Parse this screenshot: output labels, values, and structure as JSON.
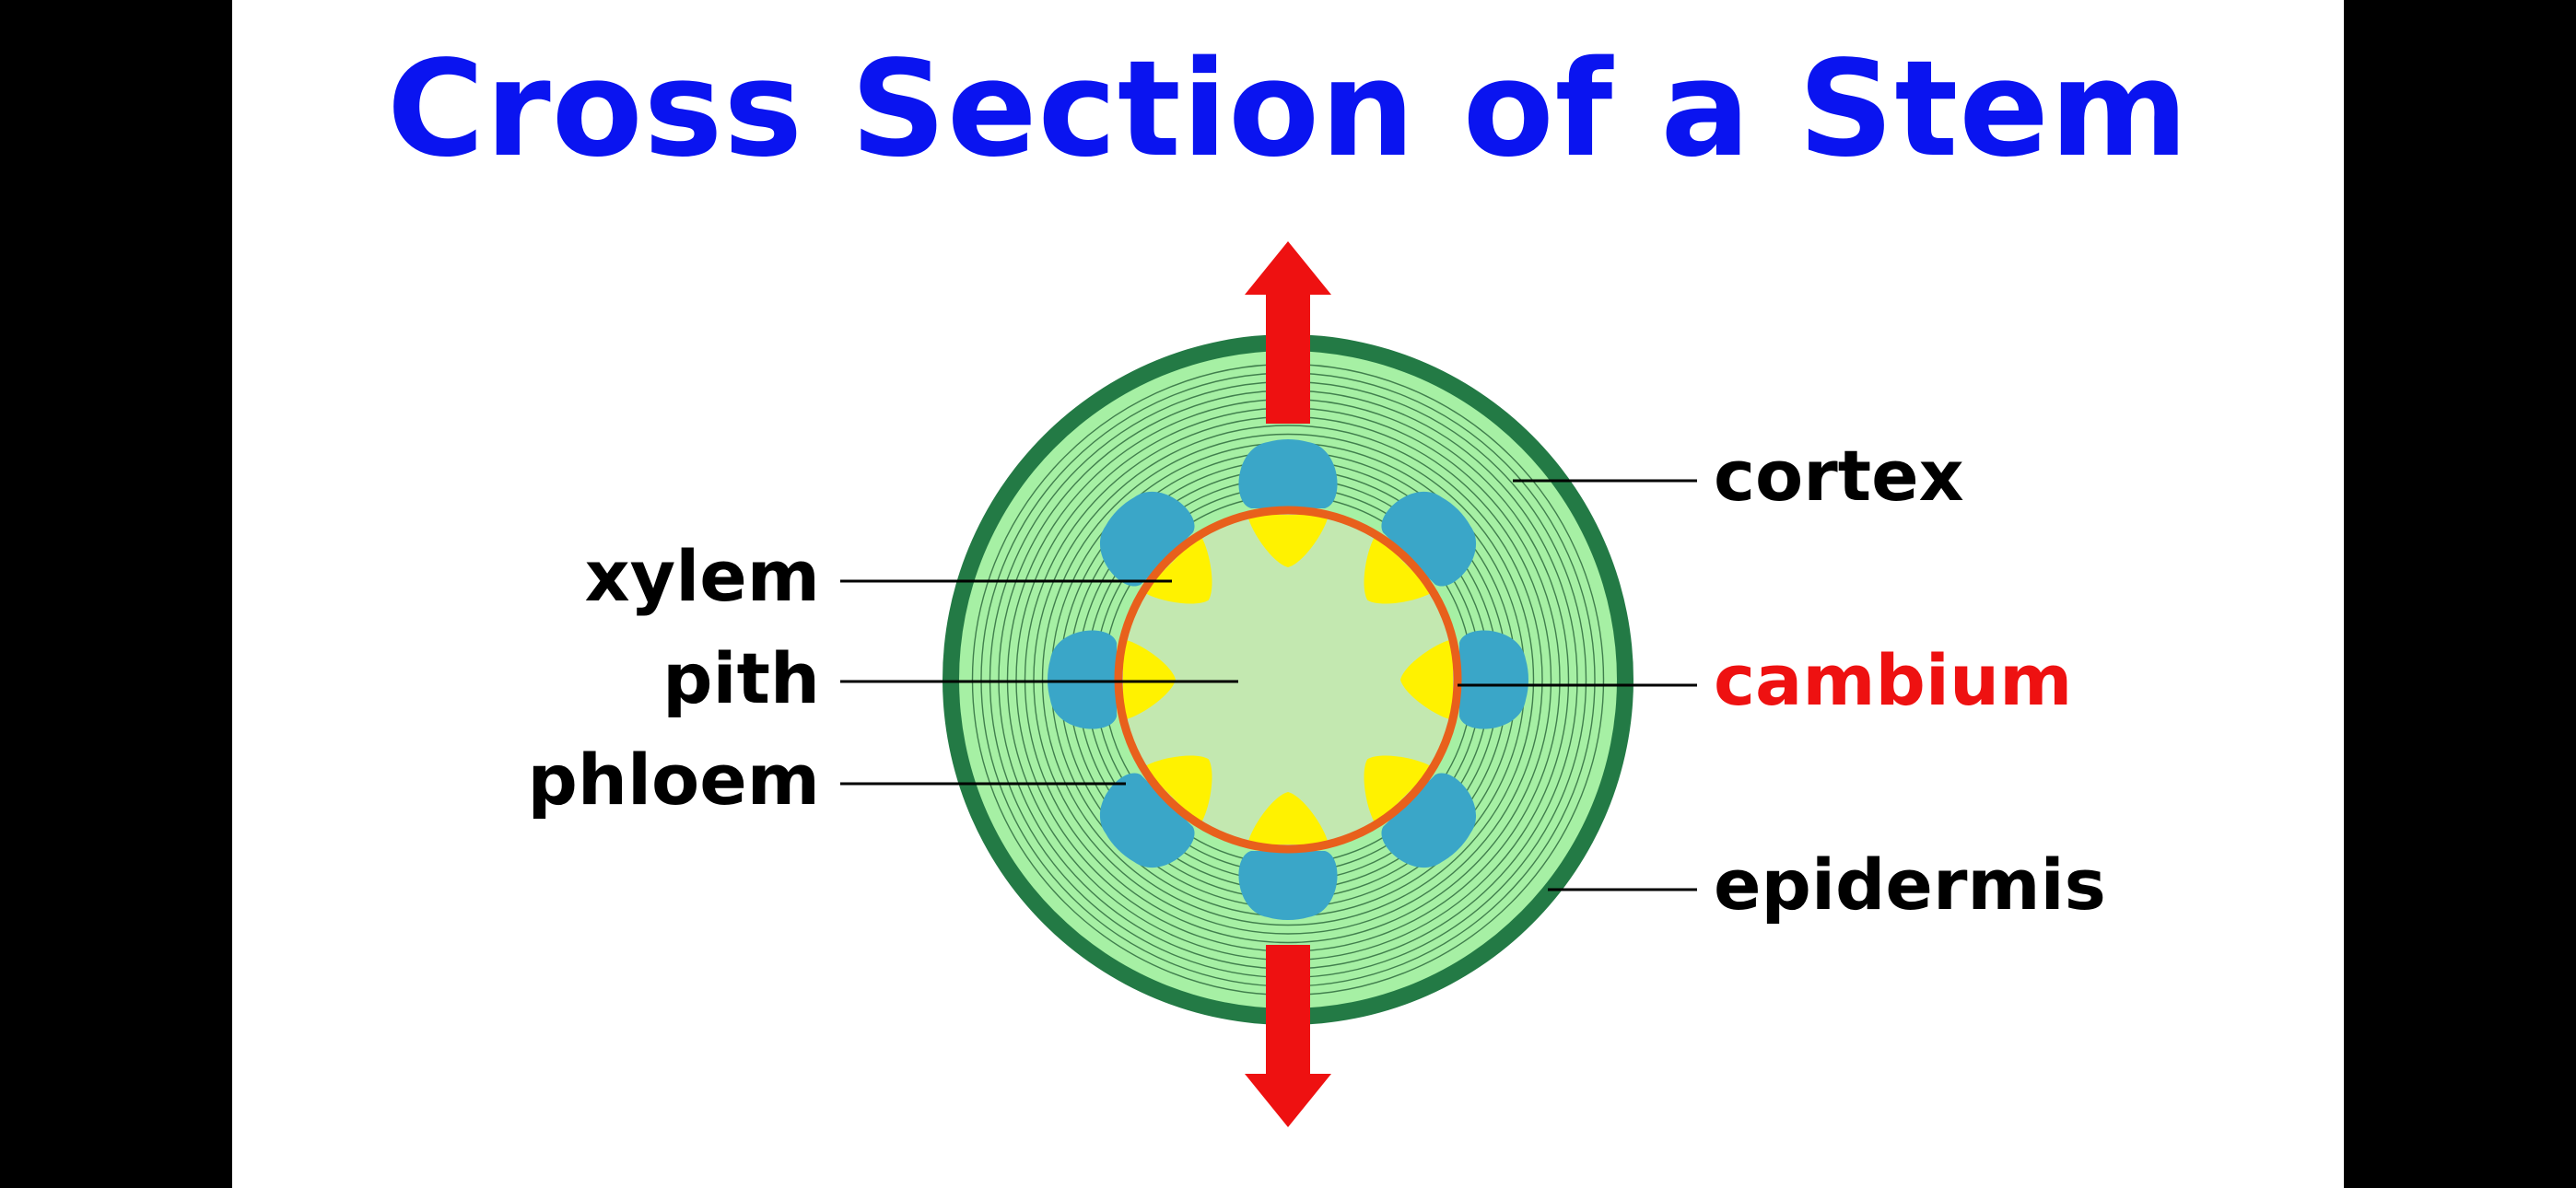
{
  "title": "Cross Section of a Stem",
  "labels": {
    "xylem": "xylem",
    "pith": "pith",
    "phloem": "phloem",
    "cortex": "cortex",
    "cambium": "cambium",
    "epidermis": "epidermis"
  },
  "colors": {
    "title": "#0a14f0",
    "label": "#000000",
    "cambium_label": "#ee1111",
    "epidermis": "#237a45",
    "cortex": "#a6f0a4",
    "cortex_rings": "#1f5a30",
    "pith": "#c3e8b0",
    "cambium_ring": "#e8601c",
    "xylem": "#fff200",
    "phloem": "#3aa6c8",
    "arrows": "#ee1111",
    "background": "#ffffff",
    "letterbox": "#000000"
  },
  "bundle_count": 8,
  "icons": [
    "up-arrow-icon",
    "down-arrow-icon"
  ]
}
